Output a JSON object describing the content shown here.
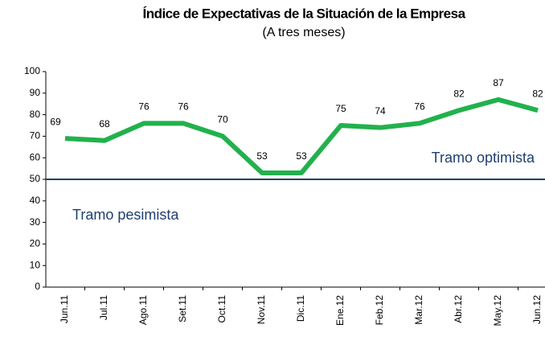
{
  "chart_data": {
    "type": "line",
    "title": "Índice de Expectativas de la Situación de la Empresa",
    "subtitle": "(A tres meses)",
    "categories": [
      "Jun.11",
      "Jul.11",
      "Ago.11",
      "Set.11",
      "Oct.11",
      "Nov.11",
      "Dic.11",
      "Ene.12",
      "Feb.12",
      "Mar.12",
      "Abr.12",
      "May.12",
      "Jun.12"
    ],
    "series": [
      {
        "name": "Índice",
        "color": "#22b14c",
        "values": [
          69,
          68,
          76,
          76,
          70,
          53,
          53,
          75,
          74,
          76,
          82,
          87,
          82
        ]
      }
    ],
    "ylim": [
      0,
      100
    ],
    "yticks": [
      0,
      10,
      20,
      30,
      40,
      50,
      60,
      70,
      80,
      90,
      100
    ],
    "reference_line": {
      "value": 50,
      "color": "#1f3f6f"
    },
    "annotations": [
      "Tramo optimista",
      "Tramo pesimista"
    ]
  }
}
